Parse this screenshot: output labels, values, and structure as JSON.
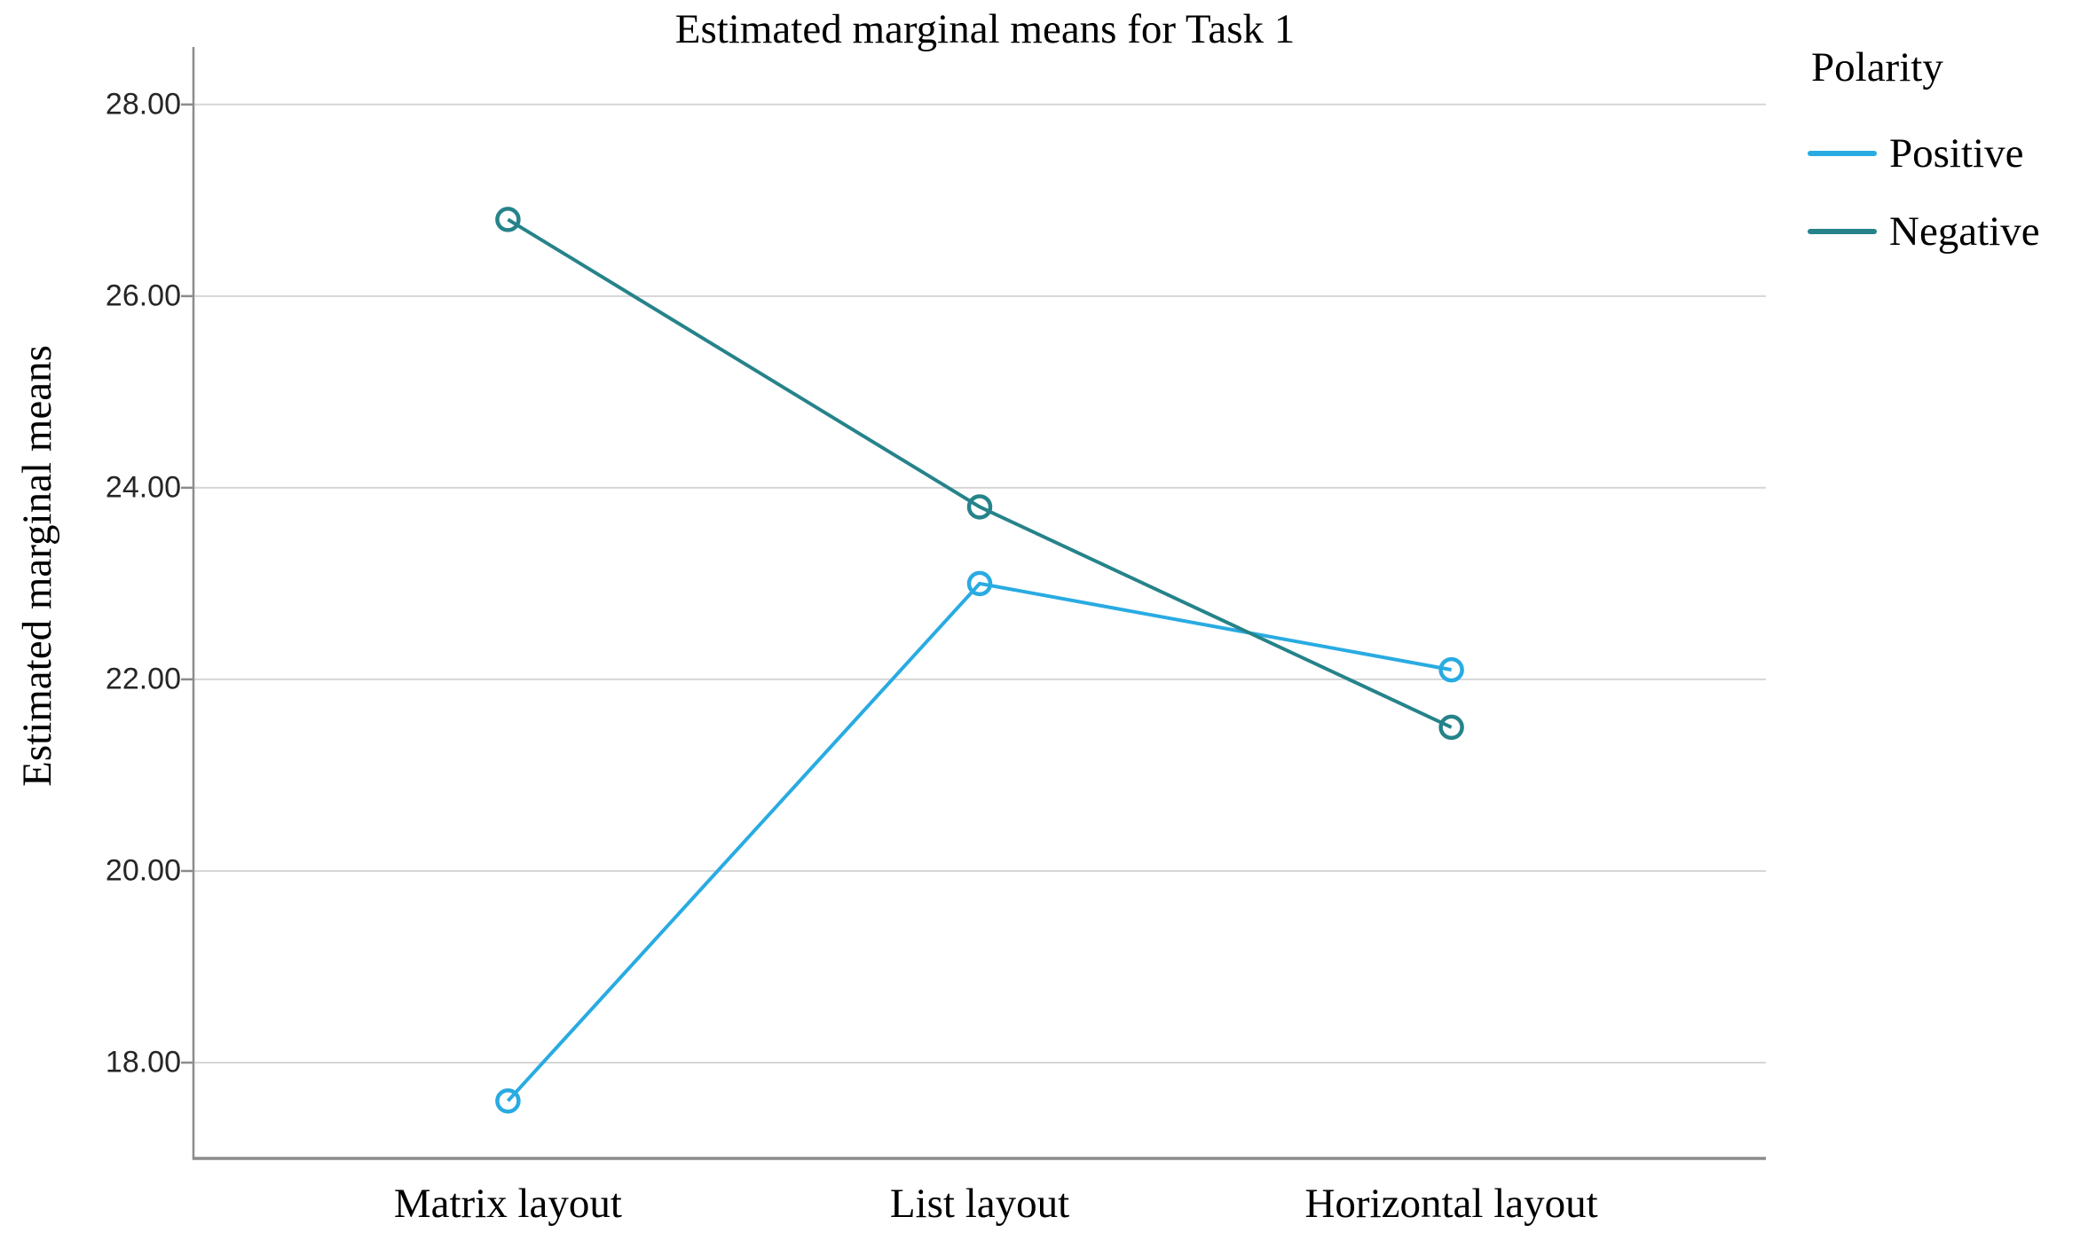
{
  "chart_data": {
    "type": "line",
    "title": "Estimated marginal means for Task 1",
    "ylabel": "Estimated marginal means",
    "xlabel": "",
    "categories": [
      "Matrix layout",
      "List layout",
      "Horizontal layout"
    ],
    "series": [
      {
        "name": "Positive",
        "color": "#29ABE2",
        "values": [
          17.6,
          23.0,
          22.1
        ]
      },
      {
        "name": "Negative",
        "color": "#26838A",
        "values": [
          26.8,
          23.8,
          21.5
        ]
      }
    ],
    "legend_title": "Polarity",
    "legend_position": "top-right",
    "yticks": [
      18,
      20,
      22,
      24,
      26,
      28
    ],
    "ytick_labels": [
      "18.00",
      "20.00",
      "22.00",
      "24.00",
      "26.00",
      "28.00"
    ],
    "ylim": [
      17.0,
      28.6
    ],
    "grid": "horizontal-only",
    "marker": "open-circle",
    "colors": {
      "gridline": "#D6D6D6",
      "axis": "#8C8C8C",
      "text": "#000000",
      "tick_text": "#262626"
    }
  }
}
